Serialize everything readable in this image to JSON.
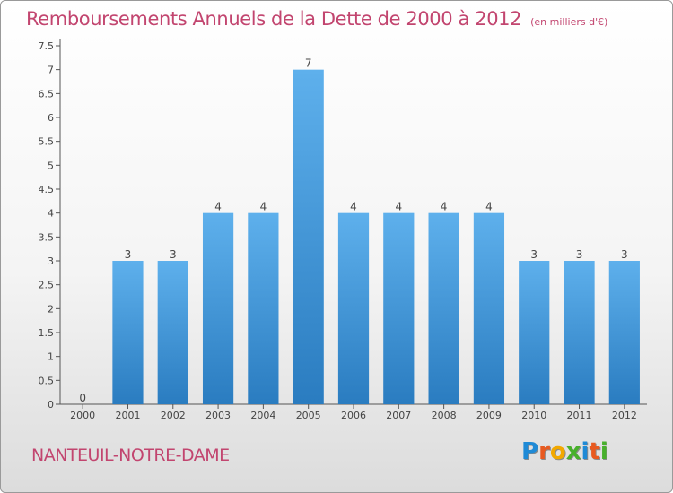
{
  "header": {
    "title": "Remboursements Annuels de la Dette de 2000 à 2012",
    "subtitle": "(en milliers d'€)"
  },
  "footer": {
    "commune": "NANTEUIL-NOTRE-DAME",
    "logo": {
      "letters": [
        "P",
        "r",
        "o",
        "x",
        "i",
        "t",
        "i"
      ],
      "colors": [
        "#1f8ad6",
        "#e85a20",
        "#f2a800",
        "#48b02c",
        "#1f8ad6",
        "#e85a20",
        "#48b02c"
      ]
    }
  },
  "chart_data": {
    "type": "bar",
    "categories": [
      "2000",
      "2001",
      "2002",
      "2003",
      "2004",
      "2005",
      "2006",
      "2007",
      "2008",
      "2009",
      "2010",
      "2011",
      "2012"
    ],
    "values": [
      0,
      3,
      3,
      4,
      4,
      7,
      4,
      4,
      4,
      4,
      3,
      3,
      3
    ],
    "data_labels": [
      "0",
      "3",
      "3",
      "4",
      "4",
      "7",
      "4",
      "4",
      "4",
      "4",
      "3",
      "3",
      "3"
    ],
    "yticks": [
      "0",
      "0.5",
      "1",
      "1.5",
      "2",
      "2.5",
      "3",
      "3.5",
      "4",
      "4.5",
      "5",
      "5.5",
      "6",
      "6.5",
      "7",
      "7.5"
    ],
    "ylim": [
      0,
      7.5
    ],
    "grid": false,
    "colors": {
      "bar_top": "#5eb0ec",
      "bar_bottom": "#2a7cc0",
      "axis": "#555555"
    }
  }
}
